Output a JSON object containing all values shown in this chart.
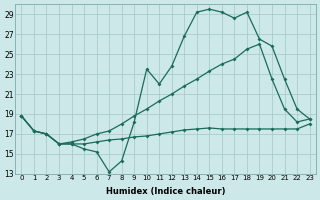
{
  "xlabel": "Humidex (Indice chaleur)",
  "background_color": "#cce8e8",
  "grid_color": "#aacccc",
  "line_color": "#1a6b5a",
  "xlim": [
    -0.5,
    23.5
  ],
  "ylim": [
    13,
    30
  ],
  "yticks": [
    13,
    15,
    17,
    19,
    21,
    23,
    25,
    27,
    29
  ],
  "xticks": [
    0,
    1,
    2,
    3,
    4,
    5,
    6,
    7,
    8,
    9,
    10,
    11,
    12,
    13,
    14,
    15,
    16,
    17,
    18,
    19,
    20,
    21,
    22,
    23
  ],
  "line1_x": [
    0,
    1,
    2,
    3,
    4,
    5,
    6,
    7,
    8,
    9,
    10,
    11,
    12,
    13,
    14,
    15,
    16,
    17,
    18,
    19,
    20,
    21,
    22,
    23
  ],
  "line1_y": [
    18.8,
    17.3,
    17.0,
    16.0,
    16.0,
    15.5,
    15.2,
    13.2,
    14.3,
    18.2,
    23.5,
    22.0,
    23.8,
    26.8,
    29.2,
    29.5,
    29.2,
    28.6,
    29.2,
    26.5,
    25.8,
    22.5,
    19.5,
    18.5
  ],
  "line2_x": [
    0,
    1,
    2,
    3,
    4,
    5,
    6,
    7,
    8,
    9,
    10,
    11,
    12,
    13,
    14,
    15,
    16,
    17,
    18,
    19,
    20,
    21,
    22,
    23
  ],
  "line2_y": [
    18.8,
    17.3,
    17.0,
    16.0,
    16.2,
    16.5,
    17.0,
    17.3,
    18.0,
    18.8,
    19.5,
    20.3,
    21.0,
    21.8,
    22.5,
    23.3,
    24.0,
    24.5,
    25.5,
    26.0,
    22.5,
    19.5,
    18.2,
    18.5
  ],
  "line3_x": [
    0,
    1,
    2,
    3,
    4,
    5,
    6,
    7,
    8,
    9,
    10,
    11,
    12,
    13,
    14,
    15,
    16,
    17,
    18,
    19,
    20,
    21,
    22,
    23
  ],
  "line3_y": [
    18.8,
    17.3,
    17.0,
    16.0,
    16.0,
    16.0,
    16.2,
    16.4,
    16.5,
    16.7,
    16.8,
    17.0,
    17.2,
    17.4,
    17.5,
    17.6,
    17.5,
    17.5,
    17.5,
    17.5,
    17.5,
    17.5,
    17.5,
    18.0
  ]
}
